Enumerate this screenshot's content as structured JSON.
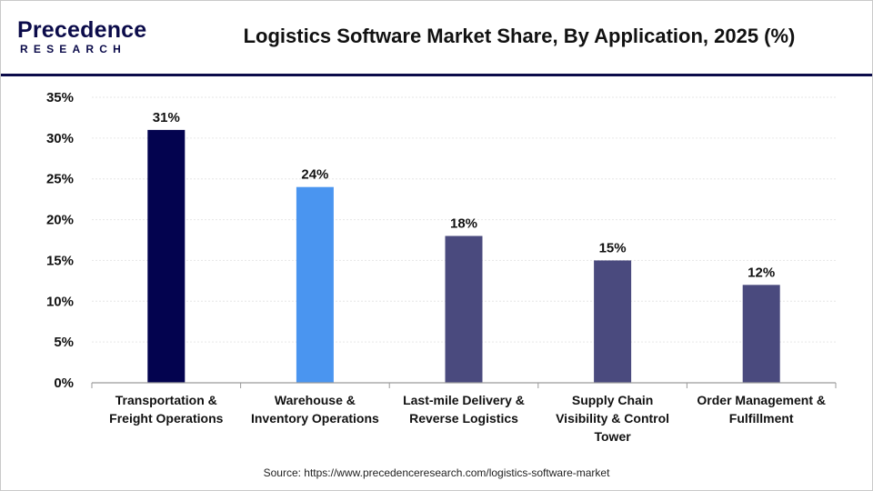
{
  "header": {
    "logo_main": "Precedence",
    "logo_sub": "RESEARCH",
    "title": "Logistics Software Market Share, By Application, 2025 (%)"
  },
  "footer": {
    "source": "Source: https://www.precedenceresearch.com/logistics-software-market"
  },
  "chart_data": {
    "type": "bar",
    "title": "Logistics Software Market Share, By Application, 2025 (%)",
    "xlabel": "",
    "ylabel": "",
    "categories": [
      [
        "Transportation &",
        "Freight Operations"
      ],
      [
        "Warehouse &",
        "Inventory Operations"
      ],
      [
        "Last-mile Delivery &",
        "Reverse Logistics"
      ],
      [
        "Supply Chain",
        "Visibility & Control",
        "Tower"
      ],
      [
        "Order Management &",
        "Fulfillment"
      ]
    ],
    "values": [
      31,
      24,
      18,
      15,
      12
    ],
    "value_labels": [
      "31%",
      "24%",
      "18%",
      "15%",
      "12%"
    ],
    "bar_colors": [
      "#03034f",
      "#4a95f0",
      "#4a4a7e",
      "#4a4a7e",
      "#4a4a7e"
    ],
    "ylim": [
      0,
      35
    ],
    "yticks": [
      0,
      5,
      10,
      15,
      20,
      25,
      30,
      35
    ],
    "ytick_labels": [
      "0%",
      "5%",
      "10%",
      "15%",
      "20%",
      "25%",
      "30%",
      "35%"
    ],
    "grid": true,
    "legend": "none"
  }
}
